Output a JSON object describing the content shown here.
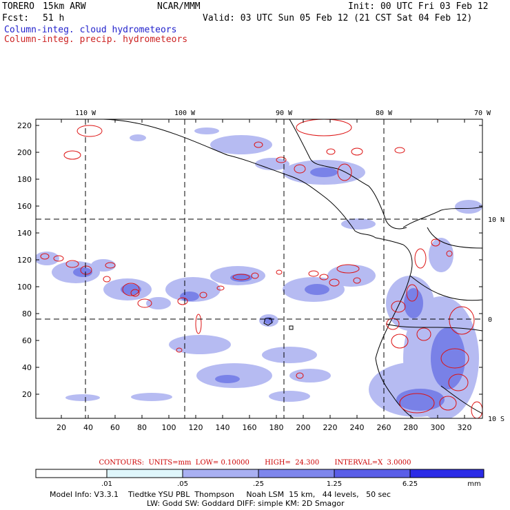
{
  "header": {
    "model": "TORERO",
    "resolution": "15km ARW",
    "org": "NCAR/MMM",
    "init": "Init: 00 UTC Fri 03 Feb 12",
    "fcst_label": "Fcst:",
    "fcst_value": "51 h",
    "valid": "Valid: 03 UTC Sun 05 Feb 12 (21 CST Sat 04 Feb 12)",
    "field_blue": "Column-integ. cloud hydrometeors",
    "field_red": "Column-integ. precip. hydrometeors"
  },
  "map": {
    "lon_labels": [
      "110 W",
      "100 W",
      "90 W",
      "80 W",
      "70 W"
    ],
    "lat_labels": [
      "10 N",
      "0",
      "10 S"
    ],
    "y_ticks": [
      "220",
      "200",
      "180",
      "160",
      "140",
      "120",
      "100",
      "80",
      "60",
      "40",
      "20"
    ],
    "x_ticks": [
      "20",
      "40",
      "60",
      "80",
      "100",
      "120",
      "140",
      "160",
      "180",
      "200",
      "220",
      "240",
      "260",
      "280",
      "300",
      "320"
    ],
    "colors": {
      "cloud_light": "#aab0f0",
      "cloud_mid": "#6f78e6",
      "precip_contour": "#dd1111",
      "coast": "#000000"
    }
  },
  "contours_line": "CONTOURS:  UNITS=mm  LOW= 0.10000       HIGH=  24.300       INTERVAL=X  3.0000",
  "colorbar": {
    "ticks": [
      ".01",
      ".05",
      ".25",
      "1.25",
      "6.25"
    ],
    "unit": "mm",
    "colors": [
      "#ffffff",
      "#dff6fb",
      "#a9b0f2",
      "#7e86ec",
      "#5a5ee8",
      "#2b2be6"
    ]
  },
  "model_info": {
    "line1": "Model Info: V3.3.1    Tiedtke YSU PBL  Thompson     Noah LSM  15 km,   44 levels,   50 sec",
    "line2": "LW: Godd SW: Goddard DIFF: simple KM: 2D Smagor"
  }
}
